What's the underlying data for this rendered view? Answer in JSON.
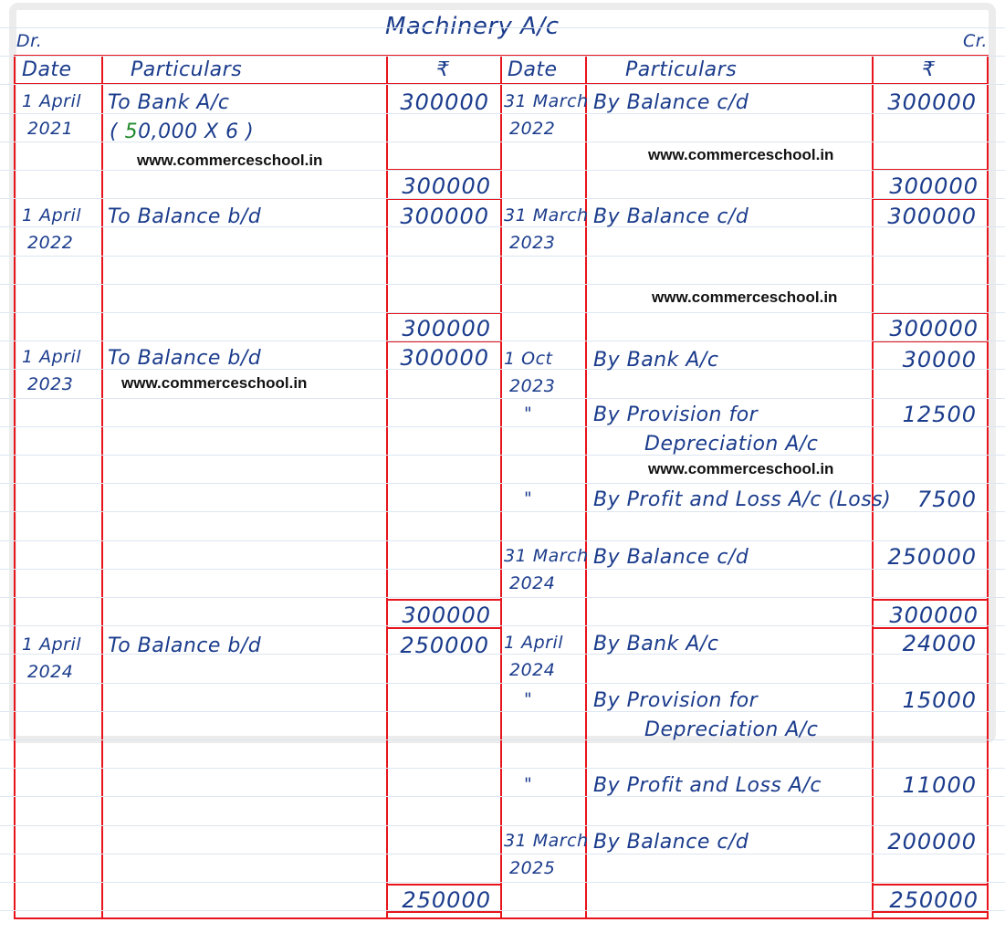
{
  "title": "Machinery A/c",
  "dr_label": "Dr.",
  "cr_label": "Cr.",
  "headers": {
    "date": "Date",
    "particulars": "Particulars",
    "amount": "₹"
  },
  "watermark": "www.commerceschool.in",
  "colors": {
    "ink": "#1b3c8c",
    "lines": "#e8141c",
    "note_green": "#1f8a2a"
  },
  "left_entries": [
    {
      "date": [
        "1 April",
        "2021"
      ],
      "particulars": [
        "To Bank A/c"
      ],
      "note": {
        "open": "( ",
        "green": "5",
        "rest": "0,000 X 6 )"
      },
      "amount": "300000"
    },
    {
      "date": [
        "1 April",
        "2022"
      ],
      "particulars": [
        "To Balance b/d"
      ],
      "amount": "300000"
    },
    {
      "date": [
        "1 April",
        "2023"
      ],
      "particulars": [
        "To Balance b/d"
      ],
      "amount": "300000"
    },
    {
      "date": [
        "1 April",
        "2024"
      ],
      "particulars": [
        "To Balance b/d"
      ],
      "amount": "250000"
    }
  ],
  "right_entries": [
    {
      "date": [
        "31 March",
        "2022"
      ],
      "particulars": [
        "By Balance c/d"
      ],
      "amount": "300000"
    },
    {
      "date": [
        "31 March",
        "2023"
      ],
      "particulars": [
        "By Balance c/d"
      ],
      "amount": "300000"
    },
    {
      "date": [
        "1 Oct",
        "2023"
      ],
      "particulars": [
        "By Bank A/c"
      ],
      "amount": "30000"
    },
    {
      "date": [
        "\""
      ],
      "particulars": [
        "By Provision for",
        "Depreciation A/c"
      ],
      "amount": "12500"
    },
    {
      "date": [
        "\""
      ],
      "particulars": [
        "By Profit and Loss A/c (Loss)"
      ],
      "amount": "7500"
    },
    {
      "date": [
        "31 March",
        "2024"
      ],
      "particulars": [
        "By Balance c/d"
      ],
      "amount": "250000"
    },
    {
      "date": [
        "1 April",
        "2024"
      ],
      "particulars": [
        "By Bank A/c"
      ],
      "amount": "24000"
    },
    {
      "date": [
        "\""
      ],
      "particulars": [
        "By Provision for",
        "Depreciation A/c"
      ],
      "amount": "15000"
    },
    {
      "date": [
        "\""
      ],
      "particulars": [
        "By Profit and Loss A/c"
      ],
      "amount": "11000"
    },
    {
      "date": [
        "31 March",
        "2025"
      ],
      "particulars": [
        "By Balance c/d"
      ],
      "amount": "200000"
    }
  ],
  "totals": [
    "300000",
    "300000",
    "300000",
    "250000"
  ]
}
